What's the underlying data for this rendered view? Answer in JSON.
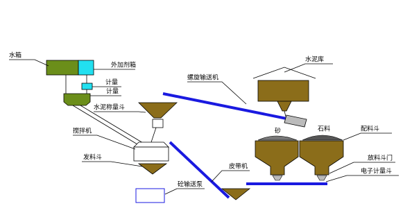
{
  "labels": {
    "water_tank": "水箱",
    "admixture_tank": "外加剂箱",
    "admixture_meter": "计量",
    "water_meter": "计量",
    "cement_hopper": "水泥称量斗",
    "mixer": "搅拌机",
    "discharge_hopper": "发料斗",
    "concrete_pump": "砼输送泵",
    "screw_conveyor": "螺旋输送机",
    "cement_silo": "水泥库",
    "sand": "砂",
    "stone": "石料",
    "batching_hopper": "配料斗",
    "gate": "放料斗门",
    "belt_conveyor": "皮带机",
    "weigh_hopper": "电子计量斗"
  }
}
